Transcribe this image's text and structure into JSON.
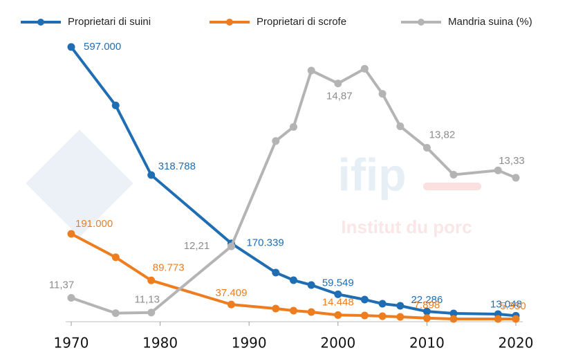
{
  "chart_data": {
    "type": "line",
    "x": [
      1970,
      1975,
      1979,
      1988,
      1993,
      1995,
      1997,
      2000,
      2003,
      2005,
      2007,
      2010,
      2013,
      2018,
      2020
    ],
    "xlim": [
      1970,
      2020
    ],
    "xticks": [
      1970,
      1980,
      1990,
      2000,
      2010,
      2020
    ],
    "ylim": [
      0,
      639000
    ],
    "y2lim": [
      10.98,
      15.78
    ],
    "legend": "top",
    "watermark": [
      "ifip",
      "Institut du porc"
    ],
    "series": [
      {
        "name": "Proprietari di suini",
        "color": "#1f6db3",
        "values": [
          597000,
          470000,
          318788,
          170339,
          106800,
          90200,
          79700,
          59549,
          48100,
          39100,
          34600,
          22286,
          18000,
          16500,
          13048
        ],
        "value_labels": [
          "597.000",
          null,
          "318.788",
          "170.339",
          null,
          null,
          null,
          "59.549",
          null,
          null,
          null,
          "22.286",
          null,
          null,
          "13.048"
        ]
      },
      {
        "name": "Proprietari di scrofe",
        "color": "#ed7d1f",
        "values": [
          191000,
          140000,
          89773,
          37409,
          28600,
          24000,
          21000,
          14448,
          13500,
          12000,
          10500,
          7898,
          6000,
          6000,
          5950
        ],
        "value_labels": [
          "191.000",
          null,
          "89.773",
          "37.409",
          null,
          null,
          null,
          "14.448",
          null,
          null,
          null,
          "7.898",
          null,
          null,
          "5.950"
        ]
      },
      {
        "name": "Mandria suina (%)",
        "color": "#b4b4b4",
        "axis": "y2",
        "values": [
          11.37,
          11.12,
          11.13,
          12.21,
          13.93,
          14.16,
          15.08,
          14.87,
          15.11,
          14.7,
          14.17,
          13.82,
          13.38,
          13.45,
          13.33
        ],
        "value_labels": [
          "11,37",
          null,
          "11,13",
          "12,21",
          null,
          null,
          null,
          "14,87",
          null,
          null,
          null,
          "13,82",
          null,
          null,
          "13,33"
        ]
      }
    ]
  }
}
